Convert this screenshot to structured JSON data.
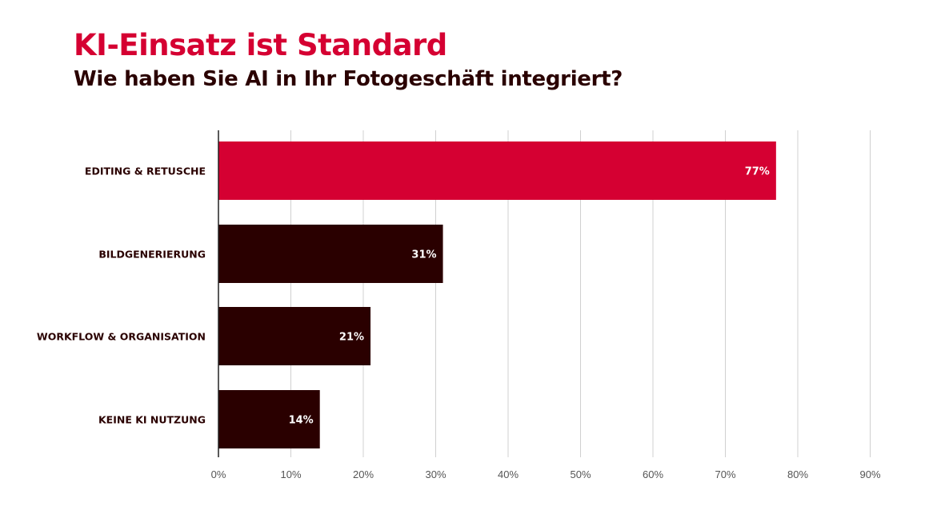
{
  "header": {
    "title": "KI-Einsatz ist Standard",
    "subtitle": "Wie haben Sie AI in Ihr Fotogeschäft integriert?"
  },
  "colors": {
    "title": "#d50032",
    "highlight_bar": "#d50032",
    "default_bar": "#2a0000",
    "gridline": "#d0d0d0",
    "axis": "#222222"
  },
  "chart_data": {
    "type": "bar",
    "orientation": "horizontal",
    "title": "KI-Einsatz ist Standard",
    "subtitle": "Wie haben Sie AI in Ihr Fotogeschäft integriert?",
    "categories": [
      "EDITING & RETUSCHE",
      "BILDGENERIERUNG",
      "WORKFLOW & ORGANISATION",
      "KEINE KI NUTZUNG"
    ],
    "values": [
      77,
      31,
      21,
      14
    ],
    "value_labels": [
      "77%",
      "31%",
      "21%",
      "14%"
    ],
    "highlighted_category": "EDITING & RETUSCHE",
    "xlim": [
      0,
      90
    ],
    "x_ticks": [
      "0%",
      "10%",
      "20%",
      "30%",
      "40%",
      "50%",
      "60%",
      "70%",
      "80%",
      "90%"
    ],
    "grid": true,
    "legend": "none"
  }
}
